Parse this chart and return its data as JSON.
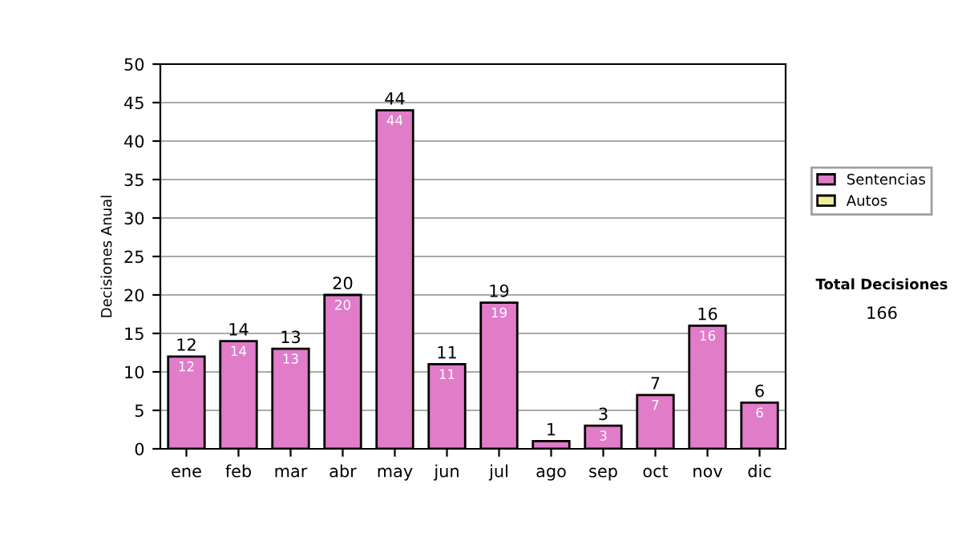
{
  "chart_data": {
    "type": "bar",
    "ylabel": "Decisiones Anual",
    "categories": [
      "ene",
      "feb",
      "mar",
      "abr",
      "may",
      "jun",
      "jul",
      "ago",
      "sep",
      "oct",
      "nov",
      "dic"
    ],
    "series": [
      {
        "name": "Sentencias",
        "color": "#e07cc8",
        "values": [
          12,
          14,
          13,
          20,
          44,
          11,
          19,
          1,
          3,
          7,
          16,
          6
        ],
        "value_labels": [
          "12",
          "14",
          "13",
          "20",
          "44",
          "11",
          "19",
          null,
          "3",
          "7",
          "16",
          "6"
        ]
      },
      {
        "name": "Autos",
        "color": "#eeee99",
        "values": [
          null,
          null,
          null,
          null,
          null,
          null,
          null,
          null,
          null,
          null,
          null,
          null
        ]
      }
    ],
    "stacked": true,
    "totals": [
      "12",
      "14",
      "13",
      "20",
      "44",
      "11",
      "19",
      "1",
      "3",
      "7",
      "16",
      "6"
    ],
    "ylim": [
      0,
      50
    ],
    "yticks": [
      0,
      5,
      10,
      15,
      20,
      25,
      30,
      35,
      40,
      45,
      50
    ],
    "grid": "y",
    "legend": "right",
    "annotations": [
      "Total Decisiones",
      "166"
    ]
  }
}
